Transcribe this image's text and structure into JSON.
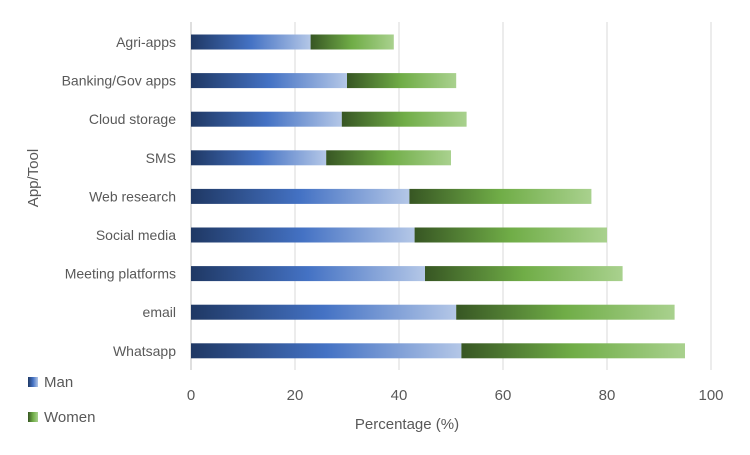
{
  "chart_data": {
    "type": "bar",
    "orientation": "horizontal",
    "stacked": true,
    "categories": [
      "Agri-apps",
      "Banking/Gov apps",
      "Cloud storage",
      "SMS",
      "Web research",
      "Social media",
      "Meeting platforms",
      "email",
      "Whatsapp"
    ],
    "series": [
      {
        "name": "Man",
        "values": [
          23,
          30,
          29,
          26,
          42,
          43,
          45,
          51,
          52
        ],
        "color_start": "#1f3864",
        "color_mid": "#4472c4",
        "color_end": "#b4c7e7"
      },
      {
        "name": "Women",
        "values": [
          16,
          21,
          24,
          24,
          35,
          37,
          38,
          42,
          43
        ],
        "color_start": "#375623",
        "color_mid": "#70ad47",
        "color_end": "#a9d18e"
      }
    ],
    "xlabel": "Percentage (%)",
    "ylabel": "App/Tool",
    "xlim": [
      0,
      100
    ],
    "xticks": [
      "0",
      "20",
      "40",
      "60",
      "80",
      "100"
    ],
    "grid": "vertical",
    "legend_position": "bottom-left"
  }
}
